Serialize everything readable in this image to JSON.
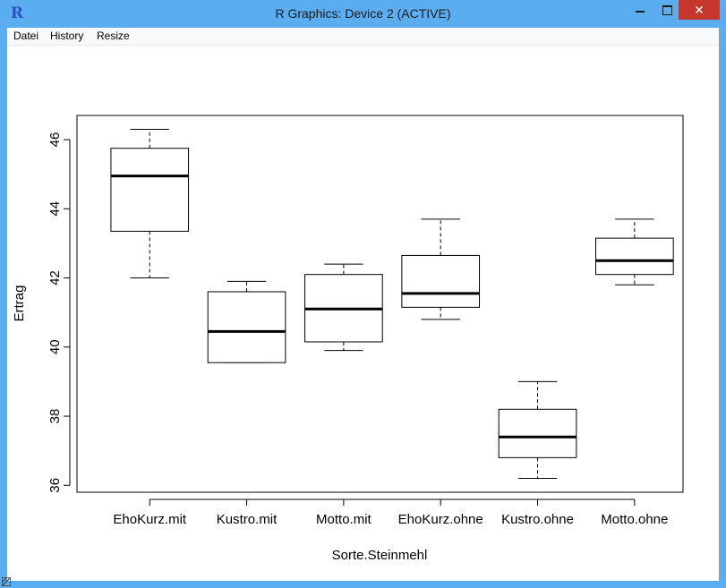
{
  "window": {
    "title": "R Graphics: Device 2 (ACTIVE)",
    "app_icon_label": "R",
    "minimize_symbol": "",
    "close_symbol": "✕",
    "titlebar_color": "#5aaef0",
    "close_color": "#c7362b"
  },
  "menu": {
    "items": [
      "Datei",
      "History",
      "Resize"
    ]
  },
  "chart_data": {
    "type": "boxplot",
    "xlabel": "Sorte.Steinmehl",
    "ylabel": "Ertrag",
    "ylim": [
      35.8,
      46.7
    ],
    "yticks": [
      36,
      38,
      40,
      42,
      44,
      46
    ],
    "categories": [
      "EhoKurz.mit",
      "Kustro.mit",
      "Motto.mit",
      "EhoKurz.ohne",
      "Kustro.ohne",
      "Motto.ohne"
    ],
    "boxes": [
      {
        "category": "EhoKurz.mit",
        "min": 42.0,
        "q1": 43.35,
        "median": 44.95,
        "q3": 45.75,
        "max": 46.3
      },
      {
        "category": "Kustro.mit",
        "min": 39.55,
        "q1": 39.55,
        "median": 40.45,
        "q3": 41.6,
        "max": 41.9
      },
      {
        "category": "Motto.mit",
        "min": 39.9,
        "q1": 40.15,
        "median": 41.1,
        "q3": 42.1,
        "max": 42.4
      },
      {
        "category": "EhoKurz.ohne",
        "min": 40.8,
        "q1": 41.15,
        "median": 41.55,
        "q3": 42.65,
        "max": 43.7
      },
      {
        "category": "Kustro.ohne",
        "min": 36.2,
        "q1": 36.8,
        "median": 37.4,
        "q3": 38.2,
        "max": 39.0
      },
      {
        "category": "Motto.ohne",
        "min": 41.8,
        "q1": 42.1,
        "median": 42.5,
        "q3": 43.15,
        "max": 43.7
      }
    ],
    "grid": false,
    "legend": "none"
  }
}
